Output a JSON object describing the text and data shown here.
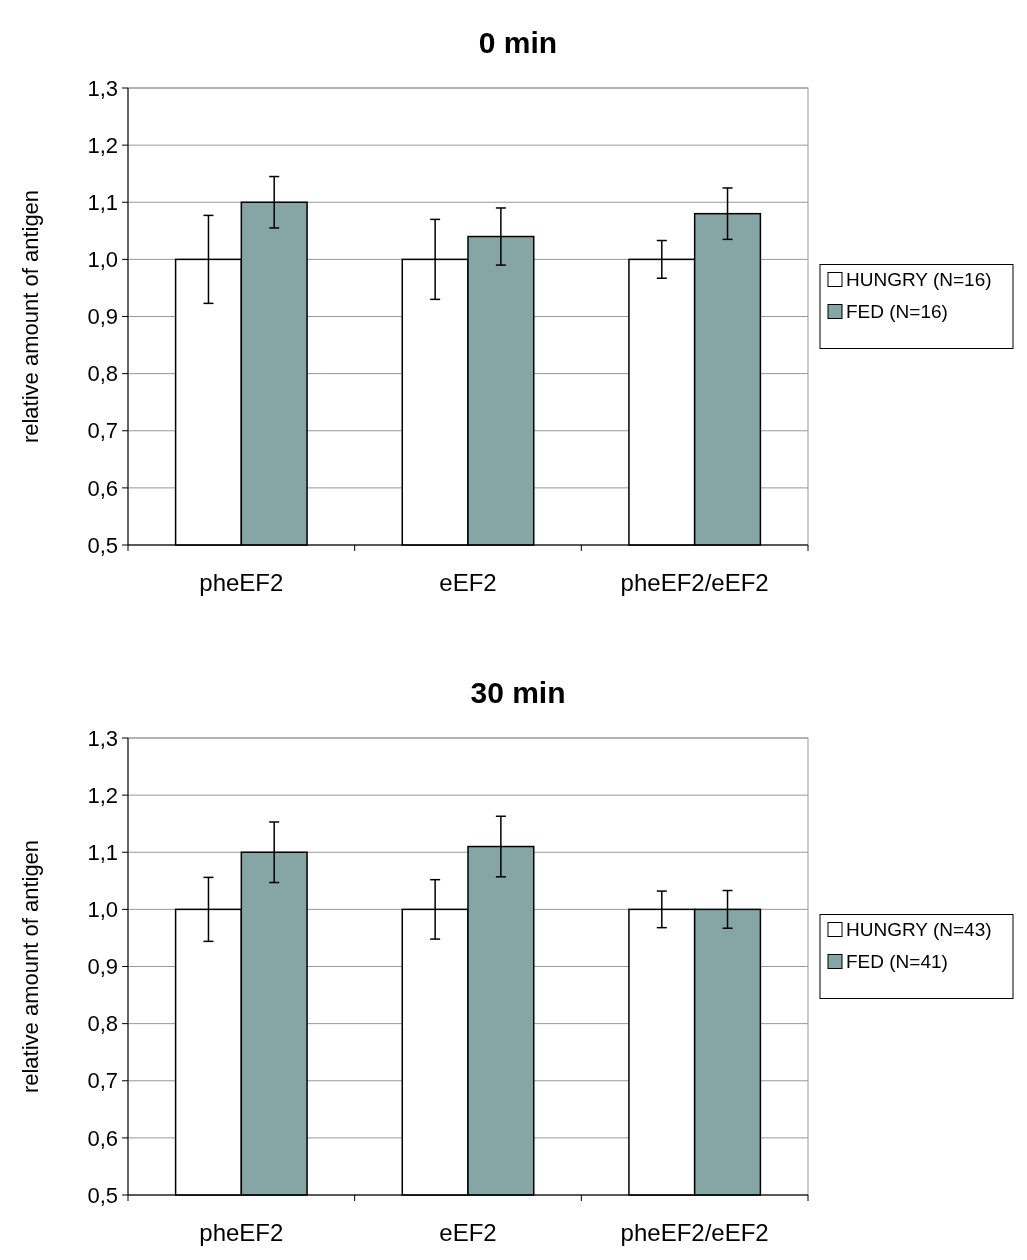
{
  "chart_data": [
    {
      "type": "bar",
      "title": "0 min",
      "ylabel": "relative amount of antigen",
      "categories": [
        "pheEF2",
        "eEF2",
        "pheEF2/eEF2"
      ],
      "series": [
        {
          "name": "HUNGRY (N=16)",
          "color": "#ffffff",
          "values": [
            1.0,
            1.0,
            1.0
          ],
          "errors": [
            0.077,
            0.07,
            0.033
          ]
        },
        {
          "name": "FED (N=16)",
          "color": "#86a6a6",
          "values": [
            1.1,
            1.04,
            1.08
          ],
          "errors": [
            0.045,
            0.05,
            0.045
          ]
        }
      ],
      "ylim": [
        0.5,
        1.3
      ],
      "yticks": [
        {
          "value": 0.5,
          "label": "0,5"
        },
        {
          "value": 0.6,
          "label": "0,6"
        },
        {
          "value": 0.7,
          "label": "0,7"
        },
        {
          "value": 0.8,
          "label": "0,8"
        },
        {
          "value": 0.9,
          "label": "0,9"
        },
        {
          "value": 1.0,
          "label": "1,0"
        },
        {
          "value": 1.1,
          "label": "1,1"
        },
        {
          "value": 1.2,
          "label": "1,2"
        },
        {
          "value": 1.3,
          "label": "1,3"
        }
      ],
      "grid": "y",
      "legend": "right"
    },
    {
      "type": "bar",
      "title": "30 min",
      "ylabel": "relative amount of antigen",
      "categories": [
        "pheEF2",
        "eEF2",
        "pheEF2/eEF2"
      ],
      "series": [
        {
          "name": "HUNGRY (N=43)",
          "color": "#ffffff",
          "values": [
            1.0,
            1.0,
            1.0
          ],
          "errors": [
            0.056,
            0.052,
            0.032
          ]
        },
        {
          "name": "FED (N=41)",
          "color": "#86a6a6",
          "values": [
            1.1,
            1.11,
            1.0
          ],
          "errors": [
            0.053,
            0.053,
            0.033
          ]
        }
      ],
      "ylim": [
        0.5,
        1.3
      ],
      "yticks": [
        {
          "value": 0.5,
          "label": "0,5"
        },
        {
          "value": 0.6,
          "label": "0,6"
        },
        {
          "value": 0.7,
          "label": "0,7"
        },
        {
          "value": 0.8,
          "label": "0,8"
        },
        {
          "value": 0.9,
          "label": "0,9"
        },
        {
          "value": 1.0,
          "label": "1,0"
        },
        {
          "value": 1.1,
          "label": "1,1"
        },
        {
          "value": 1.2,
          "label": "1,2"
        },
        {
          "value": 1.3,
          "label": "1,3"
        }
      ],
      "grid": "y",
      "legend": "right"
    }
  ]
}
